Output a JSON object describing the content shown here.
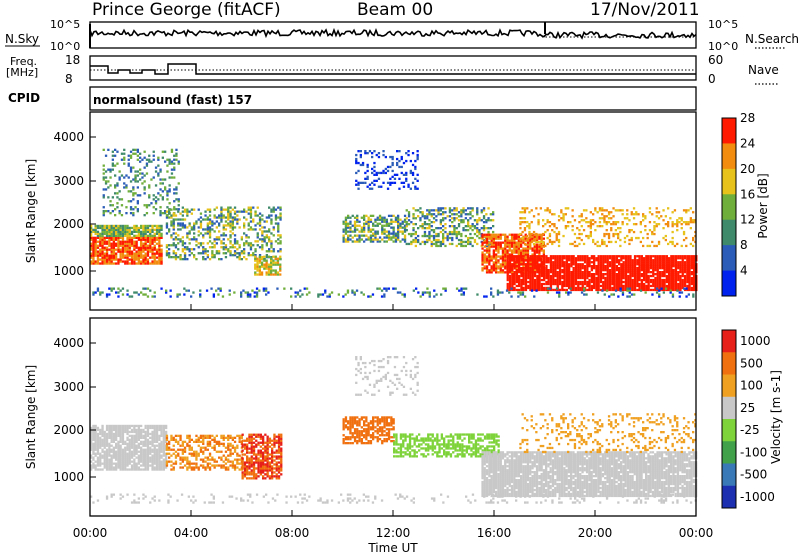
{
  "header": {
    "station": "Prince George (fitACF)",
    "beam": "Beam 00",
    "date": "17/Nov/2011"
  },
  "panels": {
    "nsky": {
      "label_top": "N.Sky",
      "label_right": "N.Search",
      "tick_hi": "10^5",
      "tick_lo": "10^0"
    },
    "freq": {
      "label": "Freq.",
      "unit": "[MHz]",
      "tick_hi": "18",
      "tick_lo": "8",
      "right_hi": "60",
      "right_lo": "0",
      "right_label": "Nave"
    },
    "cpid": {
      "label": "CPID",
      "text": "normalsound (fast) 157"
    }
  },
  "chart_data": [
    {
      "type": "heatmap",
      "name": "power",
      "ylabel": "Slant Range [km]",
      "yticks": [
        "1000",
        "2000",
        "3000",
        "4000"
      ],
      "colorbar": {
        "label": "Power [dB]",
        "ticks": [
          "4",
          "8",
          "12",
          "16",
          "20",
          "24",
          "28"
        ]
      },
      "colors": [
        "#0022ee",
        "#2b5db8",
        "#3f8a6a",
        "#6fae3a",
        "#e6c21a",
        "#f28c0f",
        "#ff1a00"
      ]
    },
    {
      "type": "heatmap",
      "name": "velocity",
      "ylabel": "Slant Range [km]",
      "yticks": [
        "1000",
        "2000",
        "3000",
        "4000"
      ],
      "colorbar": {
        "label": "Velocity [m s-1]",
        "ticks": [
          "1000",
          "500",
          "100",
          "25",
          "-25",
          "-100",
          "-500",
          "-1000"
        ]
      },
      "colors": [
        "#1b2fb0",
        "#3a79b8",
        "#41a04a",
        "#7ed33a",
        "#c8c8c8",
        "#f0a020",
        "#f07010",
        "#e8201a"
      ]
    }
  ],
  "xaxis": {
    "ticks": [
      "00:00",
      "04:00",
      "08:00",
      "12:00",
      "16:00",
      "20:00",
      "00:00"
    ],
    "label": "Time UT"
  }
}
